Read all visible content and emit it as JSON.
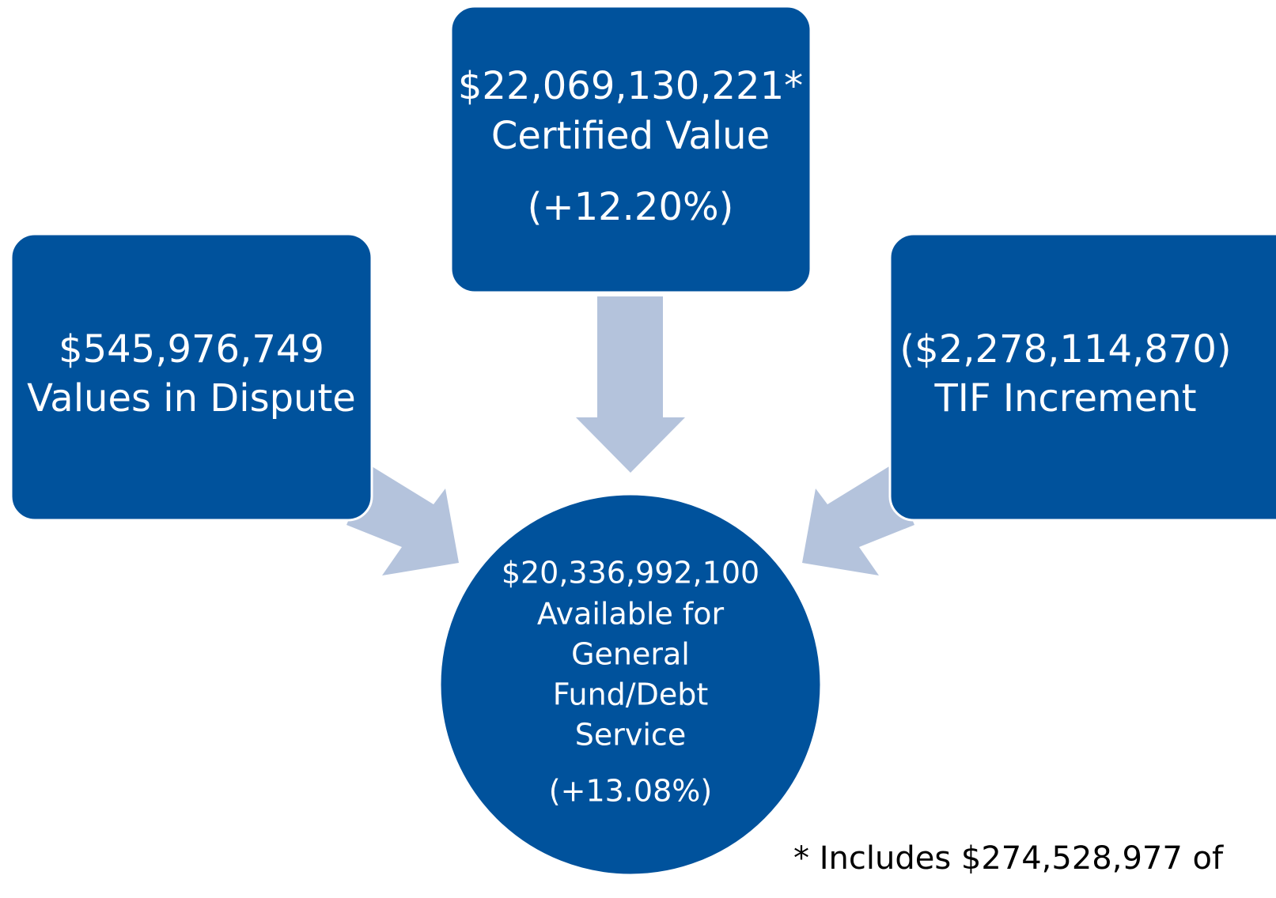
{
  "nodes": [
    {
      "lines": [
        "$22,069,130,221*",
        "Certified Value",
        "(+12.20%)"
      ]
    },
    {
      "lines": [
        "$545,976,749",
        "Values in Dispute"
      ]
    },
    {
      "lines": [
        "($2,278,114,870)",
        "TIF Increment"
      ]
    },
    {
      "lines": [
        "$20,336,992,100",
        "Available for",
        "General",
        "Fund/Debt",
        "Service",
        "(+13.08%)"
      ]
    }
  ],
  "footnote": "* Includes $274,528,977 of"
}
